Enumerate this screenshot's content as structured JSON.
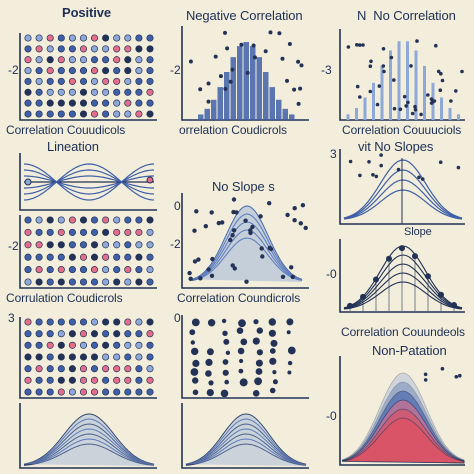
{
  "colors": {
    "background": "#f2eedb",
    "navy": "#233256",
    "blue": "#3f5fa8",
    "light_blue": "#8fa8da",
    "pink": "#e46d8a",
    "red": "#e14f5e"
  },
  "labels": {
    "positive": "Positive",
    "negative_correlation": "Negative Correlation",
    "no_correlation": "N  No Correlation",
    "corr_1": "Correlation Couudicols",
    "corr_2": "orrelation Coudicrols",
    "corr_3": "Correlation Couuuciols",
    "lineation": "Lineation",
    "no_slopes_1": "No Slope s",
    "no_slopes_2": "vit No Slopes",
    "ope": "Slope",
    "corr_4": "Corrulation Coudicrols",
    "corr_5": "Correlation Coundicrols",
    "corr_6": "Correlation Couundeols",
    "non_palation": "Non-Patation"
  },
  "ticks": {
    "t1": "-2",
    "t2": "-2",
    "t3": "-3",
    "t4": "0",
    "t5": "3",
    "t6": "0",
    "t7": "-2",
    "t8": "-2",
    "t9": "-0",
    "t10": "3",
    "t11": "0",
    "t12": "-0",
    "t13": "0"
  }
}
